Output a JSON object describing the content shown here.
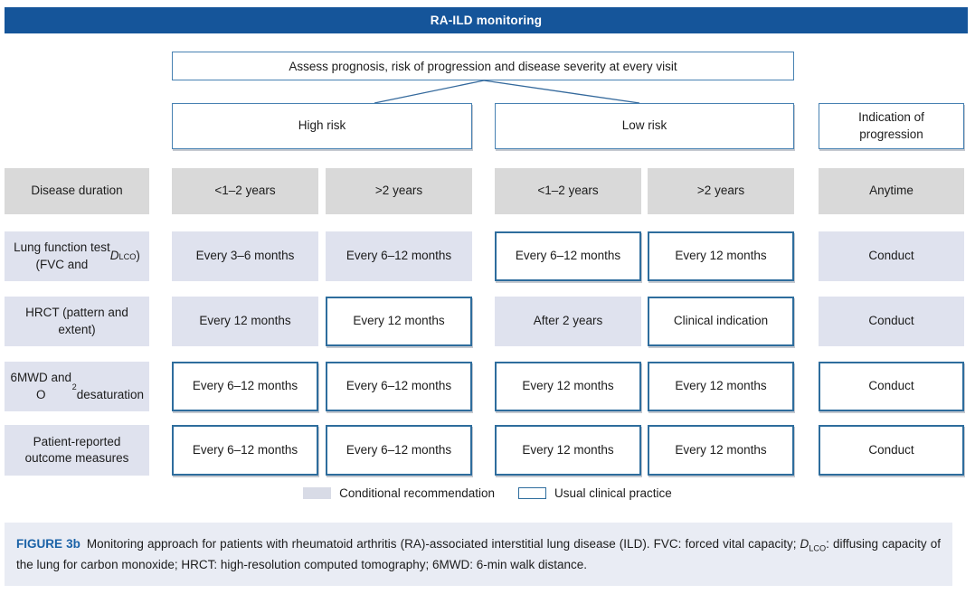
{
  "header": {
    "title": "RA-ILD monitoring"
  },
  "flow": {
    "assess_label": "Assess prognosis, risk of progression and disease severity at every visit",
    "high_risk_label": "High risk",
    "low_risk_label": "Low risk",
    "indication_label_html": "Indication of<br>progression"
  },
  "table": {
    "rows": [
      {
        "label_html": "Disease duration",
        "cells": [
          {
            "text": "<1–2 years",
            "variant": "gray"
          },
          {
            "text": ">2 years",
            "variant": "gray"
          },
          {
            "text": "<1–2 years",
            "variant": "gray"
          },
          {
            "text": ">2 years",
            "variant": "gray"
          },
          {
            "text": "Anytime",
            "variant": "gray"
          }
        ]
      },
      {
        "label_html": "Lung function test<br>(FVC and <i>D</i><sub>LCO</sub>)",
        "cells": [
          {
            "text": "Every 3–6 months",
            "variant": "filled"
          },
          {
            "text": "Every 6–12 months",
            "variant": "filled"
          },
          {
            "text": "Every 6–12 months",
            "variant": "outlined"
          },
          {
            "text": "Every 12 months",
            "variant": "outlined"
          },
          {
            "text": "Conduct",
            "variant": "filled"
          }
        ]
      },
      {
        "label_html": "HRCT (pattern and<br>extent)",
        "cells": [
          {
            "text": "Every 12 months",
            "variant": "filled"
          },
          {
            "text": "Every 12 months",
            "variant": "outlined"
          },
          {
            "text": "After 2 years",
            "variant": "filled"
          },
          {
            "text": "Clinical indication",
            "variant": "outlined"
          },
          {
            "text": "Conduct",
            "variant": "filled"
          }
        ]
      },
      {
        "label_html": "6MWD and O<sub>2</sub><br>desaturation",
        "cells": [
          {
            "text": "Every 6–12 months",
            "variant": "outlined"
          },
          {
            "text": "Every 6–12 months",
            "variant": "outlined"
          },
          {
            "text": "Every 12 months",
            "variant": "outlined"
          },
          {
            "text": "Every 12 months",
            "variant": "outlined"
          },
          {
            "text": "Conduct",
            "variant": "outlined"
          }
        ]
      },
      {
        "label_html": "Patient-reported<br>outcome measures",
        "cells": [
          {
            "text": "Every 6–12 months",
            "variant": "outlined"
          },
          {
            "text": "Every 6–12 months",
            "variant": "outlined"
          },
          {
            "text": "Every 12 months",
            "variant": "outlined"
          },
          {
            "text": "Every 12 months",
            "variant": "outlined"
          },
          {
            "text": "Conduct",
            "variant": "outlined"
          }
        ]
      }
    ]
  },
  "legend": {
    "conditional_label": "Conditional recommendation",
    "usual_label": "Usual clinical practice"
  },
  "caption": {
    "label": "FIGURE 3b",
    "body_html": "Monitoring approach for patients with rheumatoid arthritis (RA)-associated interstitial lung disease (ILD). FVC: forced vital capacity; <i>D</i><sub>LCO</sub>: diffusing capacity of the lung for carbon monoxide; HRCT: high-resolution computed tomography; 6MWD: 6-min walk distance."
  },
  "colors": {
    "header_bg": "#15559A",
    "header_text": "#FFFFFF",
    "box_border_blue": "#4781B2",
    "cell_border_blue": "#2E6D9D",
    "conditional_fill": "#DFE2EE",
    "duration_gray": "#D9D9D9",
    "caption_bg": "#E9ECF4",
    "figure_label_blue": "#1A62A7",
    "connector_blue": "#34699C"
  }
}
